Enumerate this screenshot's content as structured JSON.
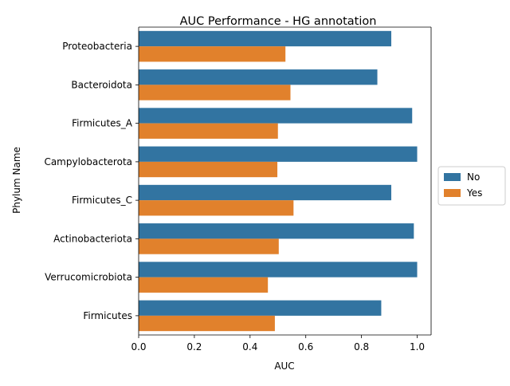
{
  "chart_data": {
    "type": "bar",
    "orientation": "horizontal",
    "title": "AUC Performance - HG annotation",
    "xlabel": "AUC",
    "ylabel": "Phylum Name",
    "xlim": [
      0,
      1.05
    ],
    "xticks": [
      "0.0",
      "0.2",
      "0.4",
      "0.6",
      "0.8",
      "1.0"
    ],
    "xtick_values": [
      0,
      0.2,
      0.4,
      0.6,
      0.8,
      1.0
    ],
    "grid": false,
    "legend_position": "center-right",
    "categories": [
      "Proteobacteria",
      "Bacteroidota",
      "Firmicutes_A",
      "Campylobacterota",
      "Firmicutes_C",
      "Actinobacteriota",
      "Verrucomicrobiota",
      "Firmicutes"
    ],
    "series": [
      {
        "name": "No",
        "color": "#3274a1",
        "values": [
          0.907,
          0.857,
          0.982,
          1.0,
          0.907,
          0.988,
          1.0,
          0.871
        ]
      },
      {
        "name": "Yes",
        "color": "#e1812c",
        "values": [
          0.527,
          0.545,
          0.5,
          0.498,
          0.556,
          0.503,
          0.464,
          0.489
        ]
      }
    ]
  }
}
